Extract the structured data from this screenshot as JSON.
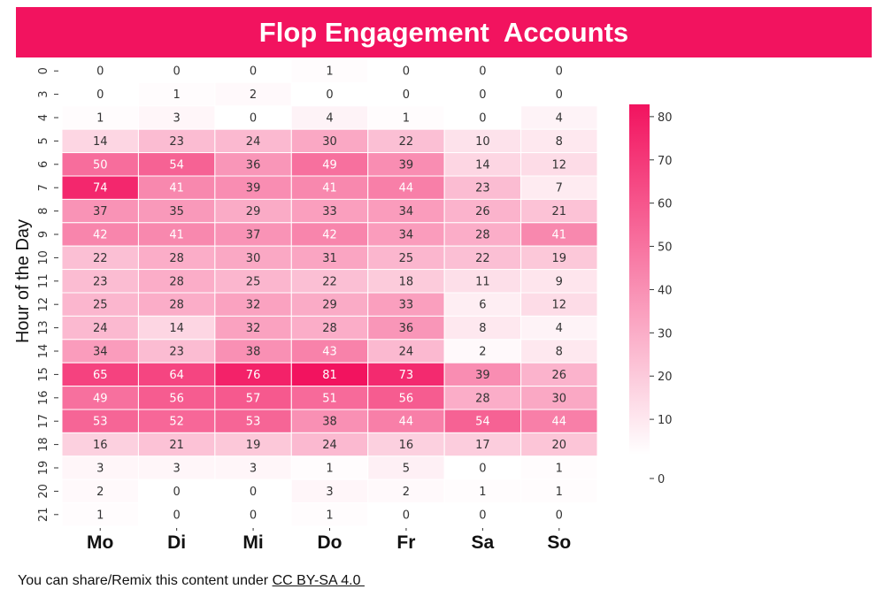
{
  "colors": {
    "accent": "#f2135f",
    "low": "#ffffff",
    "high": "#f2135f"
  },
  "chart_data": {
    "type": "heatmap",
    "title": "Flop Engagement  Accounts",
    "xlabel": "",
    "ylabel": "Hour of  the Day",
    "x_categories": [
      "Mo",
      "Di",
      "Mi",
      "Do",
      "Fr",
      "Sa",
      "So"
    ],
    "y_categories": [
      "0",
      "3",
      "4",
      "5",
      "6",
      "7",
      "8",
      "9",
      "10",
      "11",
      "12",
      "13",
      "14",
      "15",
      "16",
      "17",
      "18",
      "19",
      "20",
      "21"
    ],
    "values": [
      [
        0,
        0,
        0,
        1,
        0,
        0,
        0
      ],
      [
        0,
        1,
        2,
        0,
        0,
        0,
        0
      ],
      [
        1,
        3,
        0,
        4,
        1,
        0,
        4
      ],
      [
        14,
        23,
        24,
        30,
        22,
        10,
        8
      ],
      [
        50,
        54,
        36,
        49,
        39,
        14,
        12
      ],
      [
        74,
        41,
        39,
        41,
        44,
        23,
        7
      ],
      [
        37,
        35,
        29,
        33,
        34,
        26,
        21
      ],
      [
        42,
        41,
        37,
        42,
        34,
        28,
        41
      ],
      [
        22,
        28,
        30,
        31,
        25,
        22,
        19
      ],
      [
        23,
        28,
        25,
        22,
        18,
        11,
        9
      ],
      [
        25,
        28,
        32,
        29,
        33,
        6,
        12
      ],
      [
        24,
        14,
        32,
        28,
        36,
        8,
        4
      ],
      [
        34,
        23,
        38,
        43,
        24,
        2,
        8
      ],
      [
        65,
        64,
        76,
        81,
        73,
        39,
        26
      ],
      [
        49,
        56,
        57,
        51,
        56,
        28,
        30
      ],
      [
        53,
        52,
        53,
        38,
        44,
        54,
        44
      ],
      [
        16,
        21,
        19,
        24,
        16,
        17,
        20
      ],
      [
        3,
        3,
        3,
        1,
        5,
        0,
        1
      ],
      [
        2,
        0,
        0,
        3,
        2,
        1,
        1
      ],
      [
        1,
        0,
        0,
        1,
        0,
        0,
        0
      ]
    ],
    "color_range": [
      0,
      81
    ],
    "colorbar_ticks": [
      0,
      10,
      20,
      30,
      40,
      50,
      60,
      70,
      80
    ],
    "text_color_threshold": 40
  },
  "footer": {
    "prefix": "You can share/Remix this content under ",
    "license_link": "CC BY-SA 4.0 "
  }
}
